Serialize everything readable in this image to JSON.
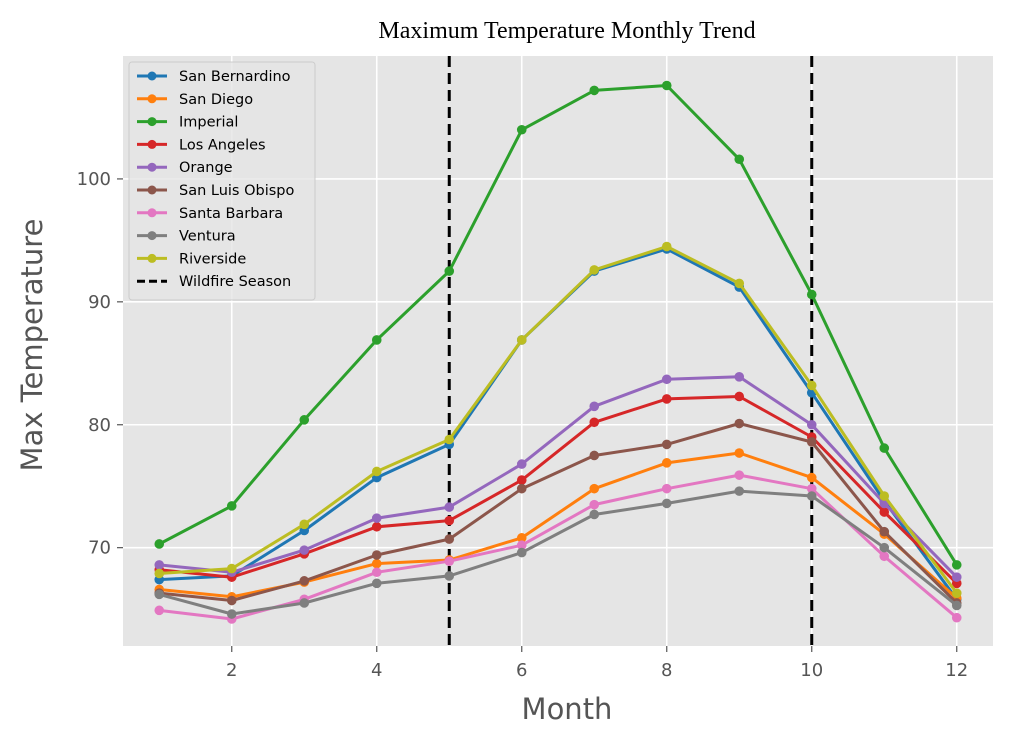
{
  "chart_data": {
    "type": "line",
    "title": "Maximum Temperature Monthly Trend",
    "xlabel": "Month",
    "ylabel": "Max Temperature",
    "xlim": [
      0.5,
      12.5
    ],
    "ylim": [
      62.0,
      110.0
    ],
    "xticks": [
      2,
      4,
      6,
      8,
      10,
      12
    ],
    "yticks": [
      70,
      80,
      90,
      100
    ],
    "grid": true,
    "legend_position": "top-left",
    "x": [
      1,
      2,
      3,
      4,
      5,
      6,
      7,
      8,
      9,
      10,
      11,
      12
    ],
    "series": [
      {
        "name": "San Bernardino",
        "color": "#1f77b4",
        "values": [
          67.4,
          67.7,
          71.4,
          75.7,
          78.4,
          86.9,
          92.5,
          94.3,
          91.2,
          82.6,
          73.8,
          65.8
        ]
      },
      {
        "name": "San Diego",
        "color": "#ff7f0e",
        "values": [
          66.6,
          66.0,
          67.2,
          68.7,
          69.0,
          70.8,
          74.8,
          76.9,
          77.7,
          75.7,
          71.1,
          65.9
        ]
      },
      {
        "name": "Imperial",
        "color": "#2ca02c",
        "values": [
          70.3,
          73.4,
          80.4,
          86.9,
          92.5,
          104.0,
          107.2,
          107.6,
          101.6,
          90.6,
          78.1,
          68.6
        ]
      },
      {
        "name": "Los Angeles",
        "color": "#d62728",
        "values": [
          68.2,
          67.6,
          69.5,
          71.7,
          72.2,
          75.5,
          80.2,
          82.1,
          82.3,
          79.0,
          72.9,
          67.1
        ]
      },
      {
        "name": "Orange",
        "color": "#9467bd",
        "values": [
          68.6,
          68.0,
          69.8,
          72.4,
          73.3,
          76.8,
          81.5,
          83.7,
          83.9,
          80.0,
          73.6,
          67.6
        ]
      },
      {
        "name": "San Luis Obispo",
        "color": "#8c564b",
        "values": [
          66.3,
          65.7,
          67.3,
          69.4,
          70.7,
          74.8,
          77.5,
          78.4,
          80.1,
          78.6,
          71.3,
          65.5
        ]
      },
      {
        "name": "Santa Barbara",
        "color": "#e377c2",
        "values": [
          64.9,
          64.2,
          65.8,
          68.0,
          68.9,
          70.2,
          73.5,
          74.8,
          75.9,
          74.8,
          69.3,
          64.3
        ]
      },
      {
        "name": "Ventura",
        "color": "#7f7f7f",
        "values": [
          66.2,
          64.6,
          65.5,
          67.1,
          67.7,
          69.6,
          72.7,
          73.6,
          74.6,
          74.2,
          70.0,
          65.3
        ]
      },
      {
        "name": "Riverside",
        "color": "#bcbd22",
        "values": [
          67.9,
          68.3,
          71.9,
          76.2,
          78.8,
          86.9,
          92.6,
          94.5,
          91.5,
          83.2,
          74.2,
          66.3
        ]
      }
    ],
    "vlines": [
      {
        "x": 5,
        "label": "Wildfire Season",
        "color": "#000000"
      },
      {
        "x": 10,
        "label": "Wildfire Season",
        "color": "#000000"
      }
    ],
    "legend_entry_vline": "Wildfire Season"
  }
}
